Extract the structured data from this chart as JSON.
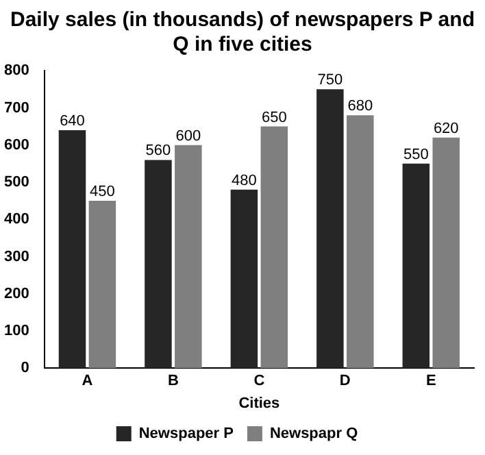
{
  "chart_data": {
    "type": "bar",
    "title": "Daily sales (in thousands) of newspapers P and Q in five cities",
    "xlabel": "Cities",
    "categories": [
      "A",
      "B",
      "C",
      "D",
      "E"
    ],
    "series": [
      {
        "name": "Newspaper P",
        "color": "#262626",
        "values": [
          640,
          560,
          480,
          750,
          550
        ]
      },
      {
        "name": "Newspapr Q",
        "color": "#7f7f7f",
        "values": [
          450,
          600,
          650,
          680,
          620
        ]
      }
    ],
    "ylim": [
      0,
      800
    ],
    "yticks": [
      0,
      100,
      200,
      300,
      400,
      500,
      600,
      700,
      800
    ],
    "grid": false,
    "legend": "bottom",
    "data_labels": true
  }
}
